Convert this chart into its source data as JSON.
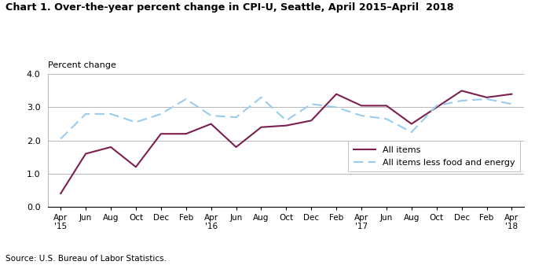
{
  "title": "Chart 1. Over-the-year percent change in CPI-U, Seattle, April 2015–April  2018",
  "ylabel": "Percent change",
  "source": "Source: U.S. Bureau of Labor Statistics.",
  "tick_labels": [
    "Apr\n'15",
    "Jun",
    "Aug",
    "Oct",
    "Dec",
    "Feb",
    "Apr\n'16",
    "Jun",
    "Aug",
    "Oct",
    "Dec",
    "Feb",
    "Apr\n'17",
    "Jun",
    "Aug",
    "Oct",
    "Dec",
    "Feb",
    "Apr\n'18"
  ],
  "all_items": [
    0.4,
    1.6,
    1.8,
    1.2,
    2.2,
    2.2,
    2.5,
    1.8,
    2.4,
    2.45,
    2.6,
    3.4,
    3.05,
    3.05,
    2.5,
    3.0,
    3.5,
    3.3,
    3.4
  ],
  "all_items_less": [
    2.05,
    2.8,
    2.8,
    2.55,
    2.8,
    3.25,
    2.75,
    2.7,
    3.3,
    2.6,
    3.1,
    3.0,
    2.75,
    2.65,
    2.25,
    3.05,
    3.2,
    3.25,
    3.1
  ],
  "ylim": [
    0.0,
    4.0
  ],
  "yticks": [
    0.0,
    1.0,
    2.0,
    3.0,
    4.0
  ],
  "all_items_color": "#7B1F4E",
  "all_items_less_color": "#99CCEE",
  "figsize": [
    6.81,
    3.37
  ],
  "dpi": 100
}
